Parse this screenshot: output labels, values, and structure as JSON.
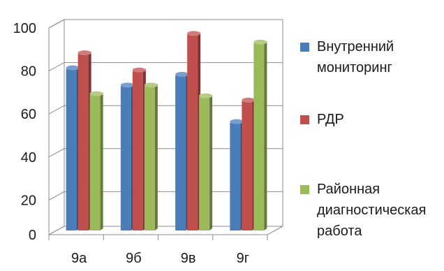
{
  "chart_data": {
    "type": "bar",
    "categories": [
      "9а",
      "9б",
      "9в",
      "9г"
    ],
    "series": [
      {
        "name": "Внутренний мониторинг",
        "values": [
          79,
          71,
          76,
          54
        ],
        "color": "#4a7ebb"
      },
      {
        "name": "РДР",
        "values": [
          86,
          78,
          95,
          64
        ],
        "color": "#c0504d"
      },
      {
        "name": "Районная диагностическая работа",
        "values": [
          67,
          71,
          66,
          91
        ],
        "color": "#9bbb59"
      }
    ],
    "title": "",
    "xlabel": "",
    "ylabel": "",
    "ylim": [
      0,
      100
    ],
    "yticks": [
      0,
      20,
      40,
      60,
      80,
      100
    ],
    "grid": true,
    "legend_position": "right",
    "style": "3d-clustered-column"
  }
}
